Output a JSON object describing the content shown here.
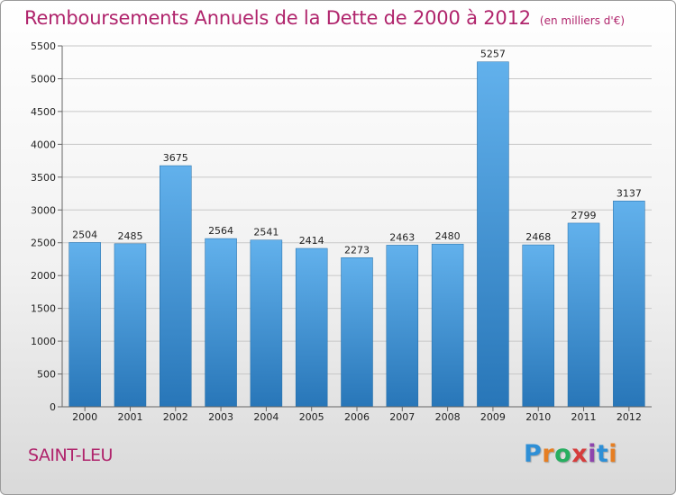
{
  "page": {
    "title": "Remboursements Annuels de la Dette de 2000 à 2012",
    "unit": "(en milliers d'€)",
    "city": "SAINT-LEU",
    "logo": {
      "text": "Proxiti",
      "letter_colors": [
        "#2e8fd6",
        "#e67e22",
        "#27ae60",
        "#d63c3c",
        "#8e44ad",
        "#2e8fd6",
        "#e67e22"
      ]
    }
  },
  "colors": {
    "title": "#b0246c",
    "bar_top": "#62b1ec",
    "bar_bottom": "#2876b8",
    "grid": "#c8c8c8",
    "axis_text": "#222222"
  },
  "chart_data": {
    "type": "bar",
    "categories": [
      "2000",
      "2001",
      "2002",
      "2003",
      "2004",
      "2005",
      "2006",
      "2007",
      "2008",
      "2009",
      "2010",
      "2011",
      "2012"
    ],
    "values": [
      2504,
      2485,
      3675,
      2564,
      2541,
      2414,
      2273,
      2463,
      2480,
      5257,
      2468,
      2799,
      3137
    ],
    "data_labels": [
      "2504",
      "2485",
      "3675",
      "2564",
      "2541",
      "2414",
      "2273",
      "2463",
      "2480",
      "5257",
      "2468",
      "2799",
      "3137"
    ],
    "ylim": [
      0,
      5500
    ],
    "yticks": [
      0,
      500,
      1000,
      1500,
      2000,
      2500,
      3000,
      3500,
      4000,
      4500,
      5000,
      5500
    ],
    "grid": true,
    "legend": "none"
  }
}
